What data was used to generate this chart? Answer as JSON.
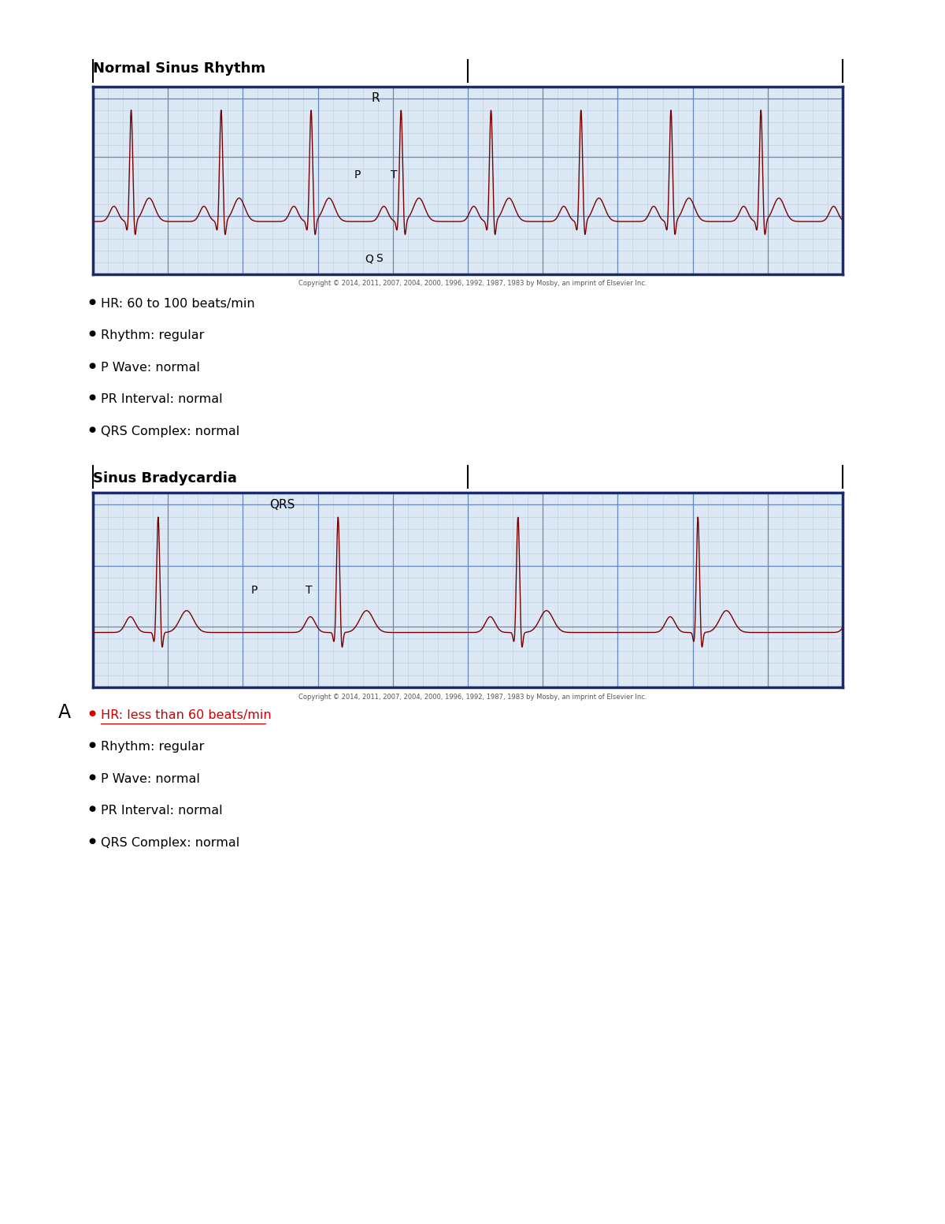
{
  "title1": "Normal Sinus Rhythm",
  "title2": "Sinus Bradycardia",
  "copyright": "Copyright © 2014, 2011, 2007, 2004, 2000, 1996, 1992, 1987, 1983 by Mosby, an imprint of Elsevier Inc.",
  "nsr_bullets": [
    "HR: 60 to 100 beats/min",
    "Rhythm: regular",
    "P Wave: normal",
    "PR Interval: normal",
    "QRS Complex: normal"
  ],
  "brady_bullets": [
    "HR: less than 60 beats/min",
    "Rhythm: regular",
    "P Wave: normal",
    "PR Interval: normal",
    "QRS Complex: normal"
  ],
  "brady_bullet1_color": "#cc0000",
  "grid_bg": "#dde8f5",
  "grid_minor_color": "#b8cce4",
  "grid_major_color": "#6688bb",
  "ecg_color": "#7a0000",
  "border_color": "#1a2a6a",
  "tick_color": "#000000",
  "title_fontsize": 13,
  "bullet_fontsize": 11.5,
  "page_bg": "#ffffff",
  "nsr_label_beat_t": 3.75,
  "brady_label_beat_t": 2.5
}
